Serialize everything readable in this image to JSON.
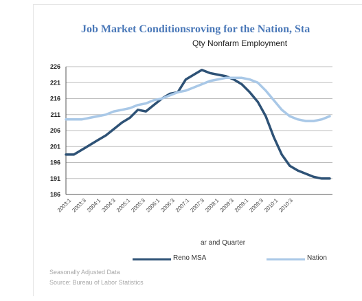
{
  "chart_data": {
    "type": "line",
    "title": "Job  Market Conditionsroving for the Nation, Sta",
    "subtitle": "Qty Nonfarm Employment",
    "xlabel": "ar and Quarter",
    "ylabel": "",
    "ylim": [
      186,
      226
    ],
    "yticks": [
      "226",
      "221",
      "216",
      "211",
      "206",
      "201",
      "196",
      "191",
      "186"
    ],
    "x_tick_labels": [
      "2003:1",
      "2003:3",
      "2004:1",
      "2004:3",
      "2005:1",
      "2005:3",
      "2006:1",
      "2006:3",
      "2007:1",
      "2007:3",
      "2008:1",
      "2008:3",
      "2009:1",
      "2009:3",
      "2010:1",
      "2010:3"
    ],
    "grid": true,
    "legend_position": "bottom",
    "series": [
      {
        "name": "Reno MSA",
        "color": "#2e5276",
        "values": [
          198.5,
          198.5,
          200.0,
          201.5,
          203.0,
          204.5,
          206.5,
          208.5,
          210.0,
          212.5,
          212.0,
          214.0,
          216.0,
          217.5,
          218.0,
          222.0,
          223.5,
          225.0,
          224.0,
          223.5,
          223.0,
          222.0,
          220.5,
          218.0,
          215.0,
          210.5,
          204.0,
          198.5,
          195.0,
          193.5,
          192.5,
          191.5,
          191.0,
          191.0
        ]
      },
      {
        "name": "Nation",
        "color": "#a9c8e7",
        "values": [
          209.5,
          209.5,
          209.5,
          210.0,
          210.5,
          211.0,
          212.0,
          212.5,
          213.0,
          214.0,
          214.5,
          215.5,
          216.0,
          217.0,
          218.0,
          218.5,
          219.5,
          220.5,
          221.5,
          222.0,
          222.5,
          222.5,
          222.5,
          222.0,
          221.0,
          218.5,
          215.5,
          212.5,
          210.5,
          209.5,
          209.0,
          209.0,
          209.5,
          210.5
        ]
      }
    ],
    "notes": [
      "Seasonally Adjusted Data",
      "Source: Bureau of Labor  Statistics"
    ]
  }
}
